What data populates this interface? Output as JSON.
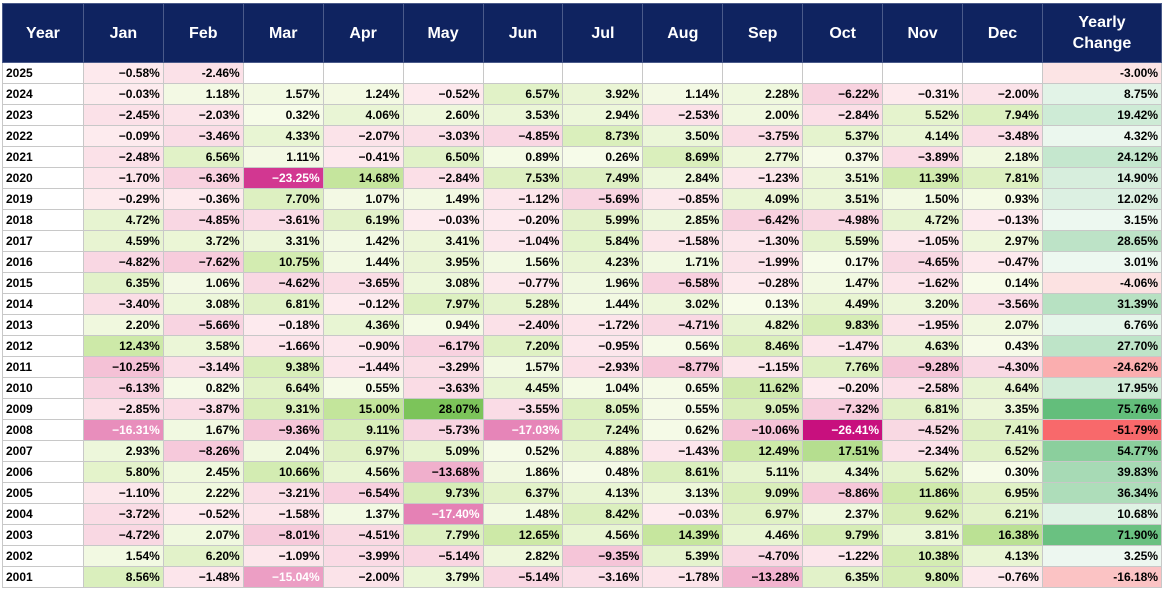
{
  "header": {
    "year": "Year",
    "months": [
      "Jan",
      "Feb",
      "Mar",
      "Apr",
      "May",
      "Jun",
      "Jul",
      "Aug",
      "Sep",
      "Oct",
      "Nov",
      "Dec"
    ],
    "yearly": "Yearly Change"
  },
  "rows": [
    {
      "year": "2025",
      "months": [
        "−0.58%",
        "-2.46%",
        "",
        "",
        "",
        "",
        "",
        "",
        "",
        "",
        "",
        ""
      ],
      "yearly": "-3.00%"
    },
    {
      "year": "2024",
      "months": [
        "−0.03%",
        "1.18%",
        "1.57%",
        "1.24%",
        "−0.52%",
        "6.57%",
        "3.92%",
        "1.14%",
        "2.28%",
        "−6.22%",
        "−0.31%",
        "−2.00%"
      ],
      "yearly": "8.75%"
    },
    {
      "year": "2023",
      "months": [
        "−2.45%",
        "−2.03%",
        "0.32%",
        "4.06%",
        "2.60%",
        "3.53%",
        "2.94%",
        "−2.53%",
        "2.00%",
        "−2.84%",
        "5.52%",
        "7.94%"
      ],
      "yearly": "19.42%"
    },
    {
      "year": "2022",
      "months": [
        "−0.09%",
        "−3.46%",
        "4.33%",
        "−2.07%",
        "−3.03%",
        "−4.85%",
        "8.73%",
        "3.50%",
        "−3.75%",
        "5.37%",
        "4.14%",
        "−3.48%"
      ],
      "yearly": "4.32%"
    },
    {
      "year": "2021",
      "months": [
        "−2.48%",
        "6.56%",
        "1.11%",
        "−0.41%",
        "6.50%",
        "0.89%",
        "0.26%",
        "8.69%",
        "2.77%",
        "0.37%",
        "−3.89%",
        "2.18%"
      ],
      "yearly": "24.12%"
    },
    {
      "year": "2020",
      "months": [
        "−1.70%",
        "−6.36%",
        "−23.25%",
        "14.68%",
        "−2.84%",
        "7.53%",
        "7.49%",
        "2.84%",
        "−1.23%",
        "3.51%",
        "11.39%",
        "7.81%"
      ],
      "yearly": "14.90%"
    },
    {
      "year": "2019",
      "months": [
        "−0.29%",
        "−0.36%",
        "7.70%",
        "1.07%",
        "1.49%",
        "−1.12%",
        "−5.69%",
        "−0.85%",
        "4.09%",
        "3.51%",
        "1.50%",
        "0.93%"
      ],
      "yearly": "12.02%"
    },
    {
      "year": "2018",
      "months": [
        "4.72%",
        "−4.85%",
        "−3.61%",
        "6.19%",
        "−0.03%",
        "−0.20%",
        "5.99%",
        "2.85%",
        "−6.42%",
        "−4.98%",
        "4.72%",
        "−0.13%"
      ],
      "yearly": "3.15%"
    },
    {
      "year": "2017",
      "months": [
        "4.59%",
        "3.72%",
        "3.31%",
        "1.42%",
        "3.41%",
        "−1.04%",
        "5.84%",
        "−1.58%",
        "−1.30%",
        "5.59%",
        "−1.05%",
        "2.97%"
      ],
      "yearly": "28.65%"
    },
    {
      "year": "2016",
      "months": [
        "−4.82%",
        "−7.62%",
        "10.75%",
        "1.44%",
        "3.95%",
        "1.56%",
        "4.23%",
        "1.71%",
        "−1.99%",
        "0.17%",
        "−4.65%",
        "−0.47%"
      ],
      "yearly": "3.01%"
    },
    {
      "year": "2015",
      "months": [
        "6.35%",
        "1.06%",
        "−4.62%",
        "−3.65%",
        "3.08%",
        "−0.77%",
        "1.96%",
        "−6.58%",
        "−0.28%",
        "1.47%",
        "−1.62%",
        "0.14%"
      ],
      "yearly": "-4.06%"
    },
    {
      "year": "2014",
      "months": [
        "−3.40%",
        "3.08%",
        "6.81%",
        "−0.12%",
        "7.97%",
        "5.28%",
        "1.44%",
        "3.02%",
        "0.13%",
        "4.49%",
        "3.20%",
        "−3.56%"
      ],
      "yearly": "31.39%"
    },
    {
      "year": "2013",
      "months": [
        "2.20%",
        "−5.66%",
        "−0.18%",
        "4.36%",
        "0.94%",
        "−2.40%",
        "−1.72%",
        "−4.71%",
        "4.82%",
        "9.83%",
        "−1.95%",
        "2.07%"
      ],
      "yearly": "6.76%"
    },
    {
      "year": "2012",
      "months": [
        "12.43%",
        "3.58%",
        "−1.66%",
        "−0.90%",
        "−6.17%",
        "7.20%",
        "−0.95%",
        "0.56%",
        "8.46%",
        "−1.47%",
        "4.63%",
        "0.43%"
      ],
      "yearly": "27.70%"
    },
    {
      "year": "2011",
      "months": [
        "−10.25%",
        "−3.14%",
        "9.38%",
        "−1.44%",
        "−3.29%",
        "1.57%",
        "−2.93%",
        "−8.77%",
        "−1.15%",
        "7.76%",
        "−9.28%",
        "−4.30%"
      ],
      "yearly": "-24.62%"
    },
    {
      "year": "2010",
      "months": [
        "−6.13%",
        "0.82%",
        "6.64%",
        "0.55%",
        "−3.63%",
        "4.45%",
        "1.04%",
        "0.65%",
        "11.62%",
        "−0.20%",
        "−2.58%",
        "4.64%"
      ],
      "yearly": "17.95%"
    },
    {
      "year": "2009",
      "months": [
        "−2.85%",
        "−3.87%",
        "9.31%",
        "15.00%",
        "28.07%",
        "−3.55%",
        "8.05%",
        "0.55%",
        "9.05%",
        "−7.32%",
        "6.81%",
        "3.35%"
      ],
      "yearly": "75.76%"
    },
    {
      "year": "2008",
      "months": [
        "−16.31%",
        "1.67%",
        "−9.36%",
        "9.11%",
        "−5.73%",
        "−17.03%",
        "7.24%",
        "0.62%",
        "−10.06%",
        "−26.41%",
        "−4.52%",
        "7.41%"
      ],
      "yearly": "-51.79%"
    },
    {
      "year": "2007",
      "months": [
        "2.93%",
        "−8.26%",
        "2.04%",
        "6.97%",
        "5.09%",
        "0.52%",
        "4.88%",
        "−1.43%",
        "12.49%",
        "17.51%",
        "−2.34%",
        "6.52%"
      ],
      "yearly": "54.77%"
    },
    {
      "year": "2006",
      "months": [
        "5.80%",
        "2.45%",
        "10.66%",
        "4.56%",
        "−13.68%",
        "1.86%",
        "0.48%",
        "8.61%",
        "5.11%",
        "4.34%",
        "5.62%",
        "0.30%"
      ],
      "yearly": "39.83%"
    },
    {
      "year": "2005",
      "months": [
        "−1.10%",
        "2.22%",
        "−3.21%",
        "−6.54%",
        "9.73%",
        "6.37%",
        "4.13%",
        "3.13%",
        "9.09%",
        "−8.86%",
        "11.86%",
        "6.95%"
      ],
      "yearly": "36.34%"
    },
    {
      "year": "2004",
      "months": [
        "−3.72%",
        "−0.52%",
        "−1.58%",
        "1.37%",
        "−17.40%",
        "1.48%",
        "8.42%",
        "−0.03%",
        "6.97%",
        "2.37%",
        "9.62%",
        "6.21%"
      ],
      "yearly": "10.68%"
    },
    {
      "year": "2003",
      "months": [
        "−4.72%",
        "2.07%",
        "−8.01%",
        "−4.51%",
        "7.79%",
        "12.65%",
        "4.56%",
        "14.39%",
        "4.46%",
        "9.79%",
        "3.81%",
        "16.38%"
      ],
      "yearly": "71.90%"
    },
    {
      "year": "2002",
      "months": [
        "1.54%",
        "6.20%",
        "−1.09%",
        "−3.99%",
        "−5.14%",
        "2.82%",
        "−9.35%",
        "5.39%",
        "−4.70%",
        "−1.22%",
        "10.38%",
        "4.13%"
      ],
      "yearly": "3.25%"
    },
    {
      "year": "2001",
      "months": [
        "8.56%",
        "−1.48%",
        "−15.04%",
        "−2.00%",
        "3.79%",
        "−5.14%",
        "−3.16%",
        "−1.78%",
        "−13.28%",
        "6.35%",
        "9.80%",
        "−0.76%"
      ],
      "yearly": "-16.18%"
    }
  ],
  "colors": {
    "header_bg": "#0f2360",
    "header_text": "#ffffff",
    "pos_light": "#f7fbea",
    "pos_mid": "#c8e7a0",
    "pos_strong": "#7cc45a",
    "neg_light": "#fdebee",
    "neg_mid": "#f2b5cf",
    "neg_strong": "#c8107e",
    "yearly_pos_light": "#f3faf5",
    "yearly_pos_strong": "#63be7b",
    "yearly_neg_light": "#fcecec",
    "yearly_neg_strong": "#f8696b"
  }
}
